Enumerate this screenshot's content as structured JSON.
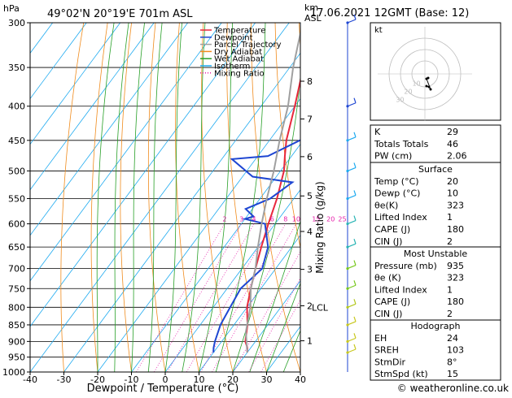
{
  "header": {
    "unit_left": "hPa",
    "location": "49°02'N  20°19'E  701m  ASL",
    "unit_km": "km",
    "unit_asl": "ASL",
    "datetime": "17.06.2021  12GMT  (Base: 12)"
  },
  "chart_data": {
    "type": "line",
    "title": "49°02'N  20°19'E  701m  ASL",
    "xlabel": "Dewpoint / Temperature (°C)",
    "ylabel": "hPa",
    "right_axis_label": "Mixing Ratio (g/kg)",
    "xlim": [
      -40,
      40
    ],
    "ylim": [
      1000,
      300
    ],
    "x_ticks": [
      -40,
      -30,
      -20,
      -10,
      0,
      10,
      20,
      30,
      40
    ],
    "pressure_levels": [
      300,
      350,
      400,
      450,
      500,
      550,
      600,
      650,
      700,
      750,
      800,
      850,
      900,
      950,
      1000
    ],
    "km_ticks": [
      {
        "km": 8,
        "p": 367
      },
      {
        "km": 7,
        "p": 418
      },
      {
        "km": 6,
        "p": 476
      },
      {
        "km": 5,
        "p": 545
      },
      {
        "km": 4,
        "p": 616
      },
      {
        "km": 3,
        "p": 702
      },
      {
        "km": 2,
        "p": 796
      },
      {
        "km": 1,
        "p": 898
      }
    ],
    "lcl": {
      "label": "LCL",
      "p": 800
    },
    "mixing_ratio_labels": [
      "2",
      "3",
      "4",
      "6",
      "8",
      "10",
      "15",
      "20",
      "25"
    ],
    "mixing_ratio_values": [
      2,
      3,
      4,
      6,
      8,
      10,
      15,
      20,
      25
    ],
    "legend": [
      {
        "name": "Temperature",
        "color": "#e8283c",
        "style": "solid"
      },
      {
        "name": "Dewpoint",
        "color": "#1e46d2",
        "style": "solid"
      },
      {
        "name": "Parcel Trajectory",
        "color": "#a0a0a0",
        "style": "solid"
      },
      {
        "name": "Dry Adiabat",
        "color": "#f08c1e",
        "style": "solid"
      },
      {
        "name": "Wet Adiabat",
        "color": "#28a028",
        "style": "solid"
      },
      {
        "name": "Isotherm",
        "color": "#1eaaf0",
        "style": "solid"
      },
      {
        "name": "Mixing Ratio",
        "color": "#e61eaa",
        "style": "dotted"
      }
    ],
    "series": [
      {
        "name": "Temperature",
        "color": "#e8283c",
        "points": [
          [
            20,
            935
          ],
          [
            19,
            920
          ],
          [
            17,
            900
          ],
          [
            14,
            850
          ],
          [
            10,
            800
          ],
          [
            7,
            750
          ],
          [
            4,
            700
          ],
          [
            1,
            650
          ],
          [
            -2,
            600
          ],
          [
            -5,
            550
          ],
          [
            -9,
            500
          ],
          [
            -12,
            475
          ],
          [
            -15,
            450
          ],
          [
            -20,
            400
          ],
          [
            -26,
            350
          ],
          [
            -33,
            300
          ]
        ]
      },
      {
        "name": "Dewpoint",
        "color": "#1e46d2",
        "points": [
          [
            10,
            935
          ],
          [
            9,
            920
          ],
          [
            8,
            900
          ],
          [
            6,
            850
          ],
          [
            5,
            800
          ],
          [
            4,
            750
          ],
          [
            6,
            700
          ],
          [
            3,
            650
          ],
          [
            -3,
            600
          ],
          [
            -10,
            590
          ],
          [
            -8,
            585
          ],
          [
            -12,
            570
          ],
          [
            -7,
            550
          ],
          [
            -4,
            520
          ],
          [
            -17,
            510
          ],
          [
            -27,
            480
          ],
          [
            -17,
            475
          ],
          [
            -6,
            430
          ],
          [
            -12,
            400
          ],
          [
            -20,
            360
          ],
          [
            -25,
            350
          ],
          [
            -31,
            300
          ]
        ]
      },
      {
        "name": "Parcel Trajectory",
        "color": "#a0a0a0",
        "points": [
          [
            20,
            935
          ],
          [
            15,
            870
          ],
          [
            11,
            800
          ],
          [
            7,
            750
          ],
          [
            4,
            700
          ],
          [
            0,
            650
          ],
          [
            -4,
            600
          ],
          [
            -8,
            550
          ],
          [
            -12,
            500
          ],
          [
            -17,
            450
          ],
          [
            -22,
            400
          ],
          [
            -29,
            350
          ],
          [
            -36,
            300
          ]
        ]
      }
    ],
    "wind_barbs_p": [
      300,
      400,
      450,
      500,
      550,
      600,
      650,
      700,
      750,
      800,
      850,
      900,
      935
    ]
  },
  "hodograph": {
    "unit": "kt",
    "ring_labels": [
      "10",
      "20",
      "30"
    ],
    "points": [
      [
        4,
        -30
      ],
      [
        10,
        -32
      ],
      [
        14,
        -38
      ],
      [
        4,
        -12
      ],
      [
        8,
        -10
      ]
    ]
  },
  "indices": {
    "rows": [
      {
        "label": "K",
        "value": "29"
      },
      {
        "label": "Totals Totals",
        "value": "46"
      },
      {
        "label": "PW (cm)",
        "value": "2.06"
      }
    ]
  },
  "surface": {
    "title": "Surface",
    "rows": [
      {
        "label": "Temp (°C)",
        "value": "20"
      },
      {
        "label": "Dewp (°C)",
        "value": "10"
      },
      {
        "label": "θe(K)",
        "value": "323"
      },
      {
        "label": "Lifted Index",
        "value": "1"
      },
      {
        "label": "CAPE (J)",
        "value": "180"
      },
      {
        "label": "CIN (J)",
        "value": "2"
      }
    ]
  },
  "most_unstable": {
    "title": "Most Unstable",
    "rows": [
      {
        "label": "Pressure (mb)",
        "value": "935"
      },
      {
        "label": "θe (K)",
        "value": "323"
      },
      {
        "label": "Lifted Index",
        "value": "1"
      },
      {
        "label": "CAPE (J)",
        "value": "180"
      },
      {
        "label": "CIN (J)",
        "value": "2"
      }
    ]
  },
  "hodograph_table": {
    "title": "Hodograph",
    "rows": [
      {
        "label": "EH",
        "value": "24"
      },
      {
        "label": "SREH",
        "value": "103"
      },
      {
        "label": "StmDir",
        "value": "8°"
      },
      {
        "label": "StmSpd (kt)",
        "value": "15"
      }
    ]
  },
  "footer": {
    "copyright": "© weatheronline.co.uk"
  }
}
